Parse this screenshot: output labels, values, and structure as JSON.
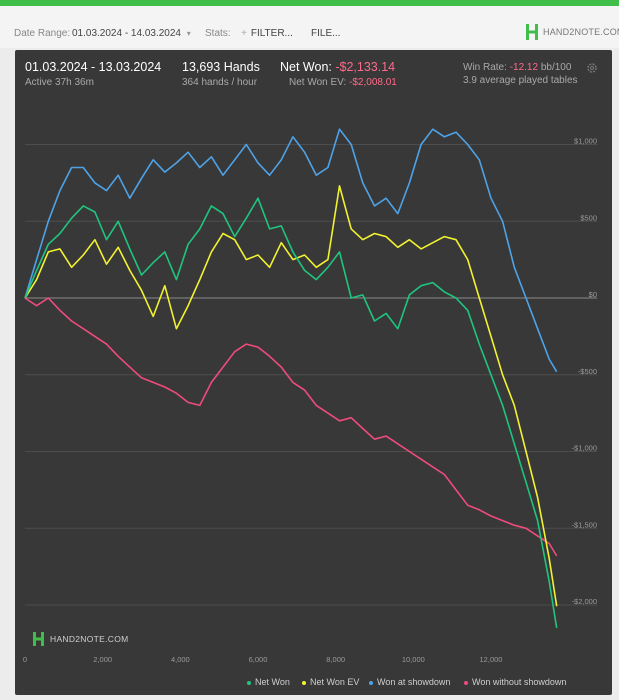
{
  "toolbar": {
    "date_range_label": "Date Range:",
    "date_range_value": "01.03.2024 - 14.03.2024",
    "stats_label": "Stats:",
    "filter_label": "FILTER...",
    "file_label": "FILE...",
    "logo_text": "HAND2NOTE.COM"
  },
  "header": {
    "period": "01.03.2024 - 13.03.2024",
    "active": "Active 37h 36m",
    "hands": "13,693 Hands",
    "hands_rate": "364 hands / hour",
    "net_won_label": "Net Won:",
    "net_won_value": "-$2,133.14",
    "net_won_ev_label": "Net Won  EV:",
    "net_won_ev_value": "-$2,008.01",
    "win_rate_label": "Win Rate:",
    "win_rate_value": "-12.12",
    "win_rate_unit": "bb/100",
    "tables": "3.9 average played tables"
  },
  "watermark": "HAND2NOTE.COM",
  "colors": {
    "net_won": "#1fc57f",
    "net_won_ev": "#f2f230",
    "won_at_showdown": "#4ea3e8",
    "won_without_showdown": "#ef4b7c",
    "panel": "#383838"
  },
  "chart_data": {
    "type": "line",
    "x_ticks": [
      0,
      2000,
      4000,
      6000,
      8000,
      10000,
      12000
    ],
    "x_tick_labels": [
      "0",
      "2,000",
      "4,000",
      "6,000",
      "8,000",
      "10,000",
      "12,000"
    ],
    "y_ticks": [
      1000,
      500,
      0,
      -500,
      -1000,
      -1500,
      -2000
    ],
    "y_tick_labels": [
      "$1,000",
      "$500",
      "$0",
      "-$500",
      "-$1,000",
      "-$1,500",
      "-$2,000"
    ],
    "xlim": [
      0,
      14000
    ],
    "ylim": [
      -2200,
      1250
    ],
    "grid": true,
    "legend_position": "bottom",
    "series": [
      {
        "name": "Net Won",
        "color": "#1fc57f",
        "x": [
          0,
          300,
          600,
          900,
          1200,
          1500,
          1800,
          2100,
          2400,
          2700,
          3000,
          3300,
          3600,
          3900,
          4200,
          4500,
          4800,
          5100,
          5400,
          5700,
          6000,
          6300,
          6600,
          6900,
          7200,
          7500,
          7800,
          8100,
          8400,
          8700,
          9000,
          9300,
          9600,
          9900,
          10200,
          10500,
          10800,
          11100,
          11400,
          11700,
          12000,
          12300,
          12600,
          12900,
          13200,
          13500,
          13693
        ],
        "y": [
          0,
          180,
          350,
          420,
          520,
          600,
          560,
          380,
          500,
          320,
          150,
          230,
          300,
          120,
          350,
          450,
          600,
          550,
          400,
          520,
          650,
          450,
          470,
          300,
          180,
          120,
          200,
          300,
          0,
          20,
          -150,
          -100,
          -200,
          20,
          80,
          100,
          40,
          0,
          -80,
          -300,
          -500,
          -700,
          -950,
          -1200,
          -1450,
          -1850,
          -2150
        ]
      },
      {
        "name": "Net Won  EV",
        "color": "#f2f230",
        "x": [
          0,
          300,
          600,
          900,
          1200,
          1500,
          1800,
          2100,
          2400,
          2700,
          3000,
          3300,
          3600,
          3900,
          4200,
          4500,
          4800,
          5100,
          5400,
          5700,
          6000,
          6300,
          6600,
          6900,
          7200,
          7500,
          7800,
          8100,
          8400,
          8700,
          9000,
          9300,
          9600,
          9900,
          10200,
          10500,
          10800,
          11100,
          11400,
          11700,
          12000,
          12300,
          12600,
          12900,
          13200,
          13500,
          13693
        ],
        "y": [
          0,
          120,
          300,
          320,
          200,
          280,
          380,
          220,
          330,
          180,
          50,
          -120,
          80,
          -200,
          -50,
          120,
          300,
          420,
          380,
          250,
          280,
          200,
          360,
          250,
          280,
          200,
          250,
          730,
          450,
          380,
          420,
          400,
          330,
          380,
          320,
          360,
          400,
          380,
          250,
          0,
          -250,
          -500,
          -700,
          -1000,
          -1300,
          -1700,
          -2008
        ]
      },
      {
        "name": "Won at showdown",
        "color": "#4ea3e8",
        "x": [
          0,
          300,
          600,
          900,
          1200,
          1500,
          1800,
          2100,
          2400,
          2700,
          3000,
          3300,
          3600,
          3900,
          4200,
          4500,
          4800,
          5100,
          5400,
          5700,
          6000,
          6300,
          6600,
          6900,
          7200,
          7500,
          7800,
          8100,
          8400,
          8700,
          9000,
          9300,
          9600,
          9900,
          10200,
          10500,
          10800,
          11100,
          11400,
          11700,
          12000,
          12300,
          12600,
          12900,
          13200,
          13500,
          13693
        ],
        "y": [
          0,
          250,
          500,
          700,
          850,
          850,
          750,
          700,
          800,
          650,
          780,
          900,
          820,
          880,
          950,
          850,
          920,
          800,
          900,
          1000,
          880,
          800,
          900,
          1050,
          950,
          800,
          850,
          1100,
          1000,
          750,
          600,
          650,
          550,
          750,
          1000,
          1100,
          1050,
          1080,
          1000,
          900,
          650,
          500,
          200,
          0,
          -200,
          -400,
          -480
        ]
      },
      {
        "name": "Won without showdown",
        "color": "#ef4b7c",
        "x": [
          0,
          300,
          600,
          900,
          1200,
          1500,
          1800,
          2100,
          2400,
          2700,
          3000,
          3300,
          3600,
          3900,
          4200,
          4500,
          4800,
          5100,
          5400,
          5700,
          6000,
          6300,
          6600,
          6900,
          7200,
          7500,
          7800,
          8100,
          8400,
          8700,
          9000,
          9300,
          9600,
          9900,
          10200,
          10500,
          10800,
          11100,
          11400,
          11700,
          12000,
          12300,
          12600,
          12900,
          13200,
          13500,
          13693
        ],
        "y": [
          0,
          -50,
          0,
          -80,
          -150,
          -200,
          -250,
          -300,
          -380,
          -450,
          -520,
          -550,
          -580,
          -620,
          -680,
          -700,
          -550,
          -450,
          -350,
          -300,
          -320,
          -380,
          -450,
          -550,
          -600,
          -700,
          -750,
          -800,
          -780,
          -850,
          -920,
          -900,
          -950,
          -1000,
          -1050,
          -1100,
          -1150,
          -1250,
          -1350,
          -1380,
          -1420,
          -1450,
          -1480,
          -1500,
          -1550,
          -1600,
          -1680
        ]
      }
    ]
  }
}
